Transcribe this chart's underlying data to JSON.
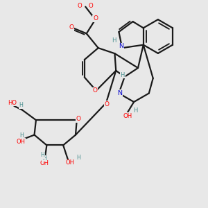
{
  "bg_color": "#e8e8e8",
  "bond_color": "#1a1a1a",
  "bond_width": 1.6,
  "atom_colors": {
    "O": "#ff0000",
    "N": "#0000cc",
    "H_teal": "#4a9090",
    "C": "#1a1a1a"
  },
  "fig_size": [
    3.0,
    3.0
  ],
  "dpi": 100,
  "xlim": [
    0,
    10
  ],
  "ylim": [
    0,
    10
  ]
}
